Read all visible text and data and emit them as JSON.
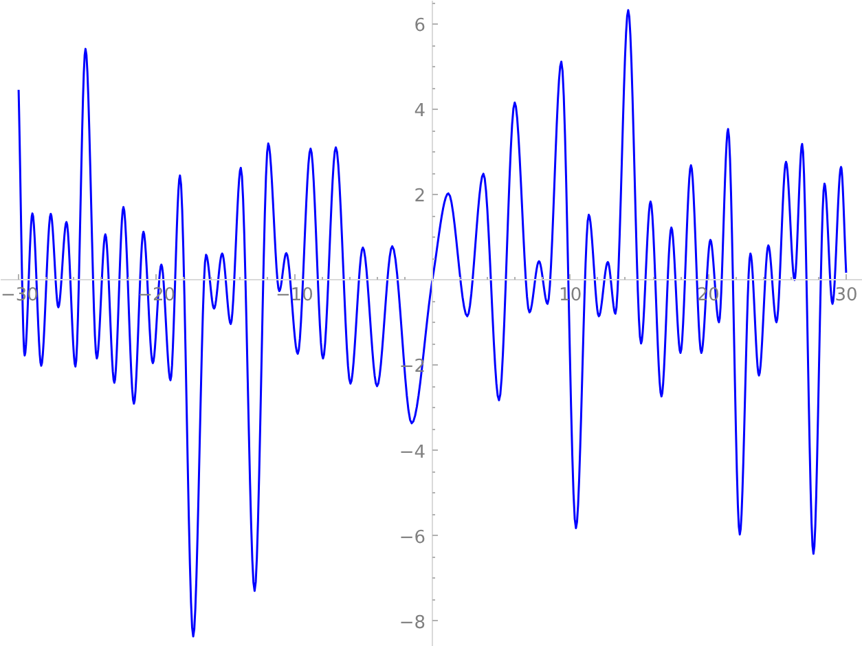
{
  "chart_data": {
    "type": "line",
    "x": [
      -30,
      -29.56,
      -29.0,
      -28.36,
      -27.67,
      -27.12,
      -26.53,
      -25.88,
      -25.15,
      -24.33,
      -23.71,
      -23.06,
      -22.4,
      -21.64,
      -20.95,
      -20.27,
      -19.65,
      -18.99,
      -18.3,
      -17.34,
      -16.41,
      -15.83,
      -15.24,
      -14.62,
      -13.89,
      -12.89,
      -11.9,
      -11.1,
      -10.59,
      -9.76,
      -8.83,
      -7.93,
      -7.0,
      -5.94,
      -5.04,
      -4.01,
      -2.91,
      -1.5,
      0,
      1.16,
      2.53,
      3.7,
      4.83,
      5.97,
      7.04,
      7.73,
      8.35,
      9.35,
      10.41,
      11.34,
      12.07,
      12.72,
      13.27,
      14.2,
      15.13,
      15.82,
      16.61,
      17.33,
      17.99,
      18.75,
      19.5,
      20.16,
      20.78,
      21.44,
      22.29,
      23.06,
      23.68,
      24.36,
      24.95,
      25.64,
      26.26,
      26.81,
      27.63,
      28.43,
      29.01,
      29.63,
      30
    ],
    "series": [
      {
        "color": "#0000ff",
        "values": [
          4.46,
          -1.77,
          1.56,
          -2.01,
          1.55,
          -0.64,
          1.36,
          -2.03,
          5.42,
          -1.84,
          1.07,
          -2.41,
          1.71,
          -2.9,
          1.13,
          -1.95,
          0.36,
          -2.35,
          2.45,
          -8.36,
          0.59,
          -0.67,
          0.62,
          -1.03,
          2.63,
          -7.29,
          3.2,
          -0.26,
          0.63,
          -1.73,
          3.08,
          -1.84,
          3.11,
          -2.43,
          0.76,
          -2.49,
          0.79,
          -3.36,
          0,
          2.03,
          -0.85,
          2.49,
          -2.82,
          4.16,
          -0.76,
          0.44,
          -0.56,
          5.12,
          -5.82,
          1.53,
          -0.85,
          0.42,
          -0.79,
          6.33,
          -1.49,
          1.84,
          -2.73,
          1.23,
          -1.71,
          2.69,
          -1.71,
          0.94,
          -0.99,
          3.54,
          -5.97,
          0.62,
          -2.24,
          0.81,
          -0.99,
          2.77,
          0.0,
          3.19,
          -6.42,
          2.26,
          -0.56,
          2.65,
          0.17
        ]
      }
    ],
    "xlim": [
      -31.3,
      31.2
    ],
    "ylim": [
      -8.6,
      6.55
    ],
    "xticks": [
      {
        "value": -30,
        "label": "−30"
      },
      {
        "value": -28,
        "label": null
      },
      {
        "value": -26,
        "label": null
      },
      {
        "value": -24,
        "label": null
      },
      {
        "value": -22,
        "label": null
      },
      {
        "value": -20,
        "label": "−20"
      },
      {
        "value": -18,
        "label": null
      },
      {
        "value": -16,
        "label": null
      },
      {
        "value": -14,
        "label": null
      },
      {
        "value": -12,
        "label": null
      },
      {
        "value": -10,
        "label": "−10"
      },
      {
        "value": -8,
        "label": null
      },
      {
        "value": -6,
        "label": null
      },
      {
        "value": -4,
        "label": null
      },
      {
        "value": -2,
        "label": null
      },
      {
        "value": 2,
        "label": null
      },
      {
        "value": 4,
        "label": null
      },
      {
        "value": 6,
        "label": null
      },
      {
        "value": 8,
        "label": null
      },
      {
        "value": 10,
        "label": "10"
      },
      {
        "value": 12,
        "label": null
      },
      {
        "value": 14,
        "label": null
      },
      {
        "value": 16,
        "label": null
      },
      {
        "value": 18,
        "label": null
      },
      {
        "value": 20,
        "label": "20"
      },
      {
        "value": 22,
        "label": null
      },
      {
        "value": 24,
        "label": null
      },
      {
        "value": 26,
        "label": null
      },
      {
        "value": 28,
        "label": null
      },
      {
        "value": 30,
        "label": "30"
      }
    ],
    "yticks": [
      {
        "value": -8,
        "label": "−8"
      },
      {
        "value": -7.5,
        "label": null
      },
      {
        "value": -7,
        "label": null
      },
      {
        "value": -6.5,
        "label": null
      },
      {
        "value": -6,
        "label": "−6"
      },
      {
        "value": -5.5,
        "label": null
      },
      {
        "value": -5,
        "label": null
      },
      {
        "value": -4.5,
        "label": null
      },
      {
        "value": -4,
        "label": "−4"
      },
      {
        "value": -3.5,
        "label": null
      },
      {
        "value": -3,
        "label": null
      },
      {
        "value": -2.5,
        "label": null
      },
      {
        "value": -2,
        "label": "−2"
      },
      {
        "value": -1.5,
        "label": null
      },
      {
        "value": -1,
        "label": null
      },
      {
        "value": -0.5,
        "label": null
      },
      {
        "value": 0.5,
        "label": null
      },
      {
        "value": 1,
        "label": null
      },
      {
        "value": 1.5,
        "label": null
      },
      {
        "value": 2,
        "label": "2"
      },
      {
        "value": 2.5,
        "label": null
      },
      {
        "value": 3,
        "label": null
      },
      {
        "value": 3.5,
        "label": null
      },
      {
        "value": 4,
        "label": "4"
      },
      {
        "value": 4.5,
        "label": null
      },
      {
        "value": 5,
        "label": null
      },
      {
        "value": 5.5,
        "label": null
      },
      {
        "value": 6,
        "label": "6"
      },
      {
        "value": 6.5,
        "label": null
      }
    ]
  }
}
